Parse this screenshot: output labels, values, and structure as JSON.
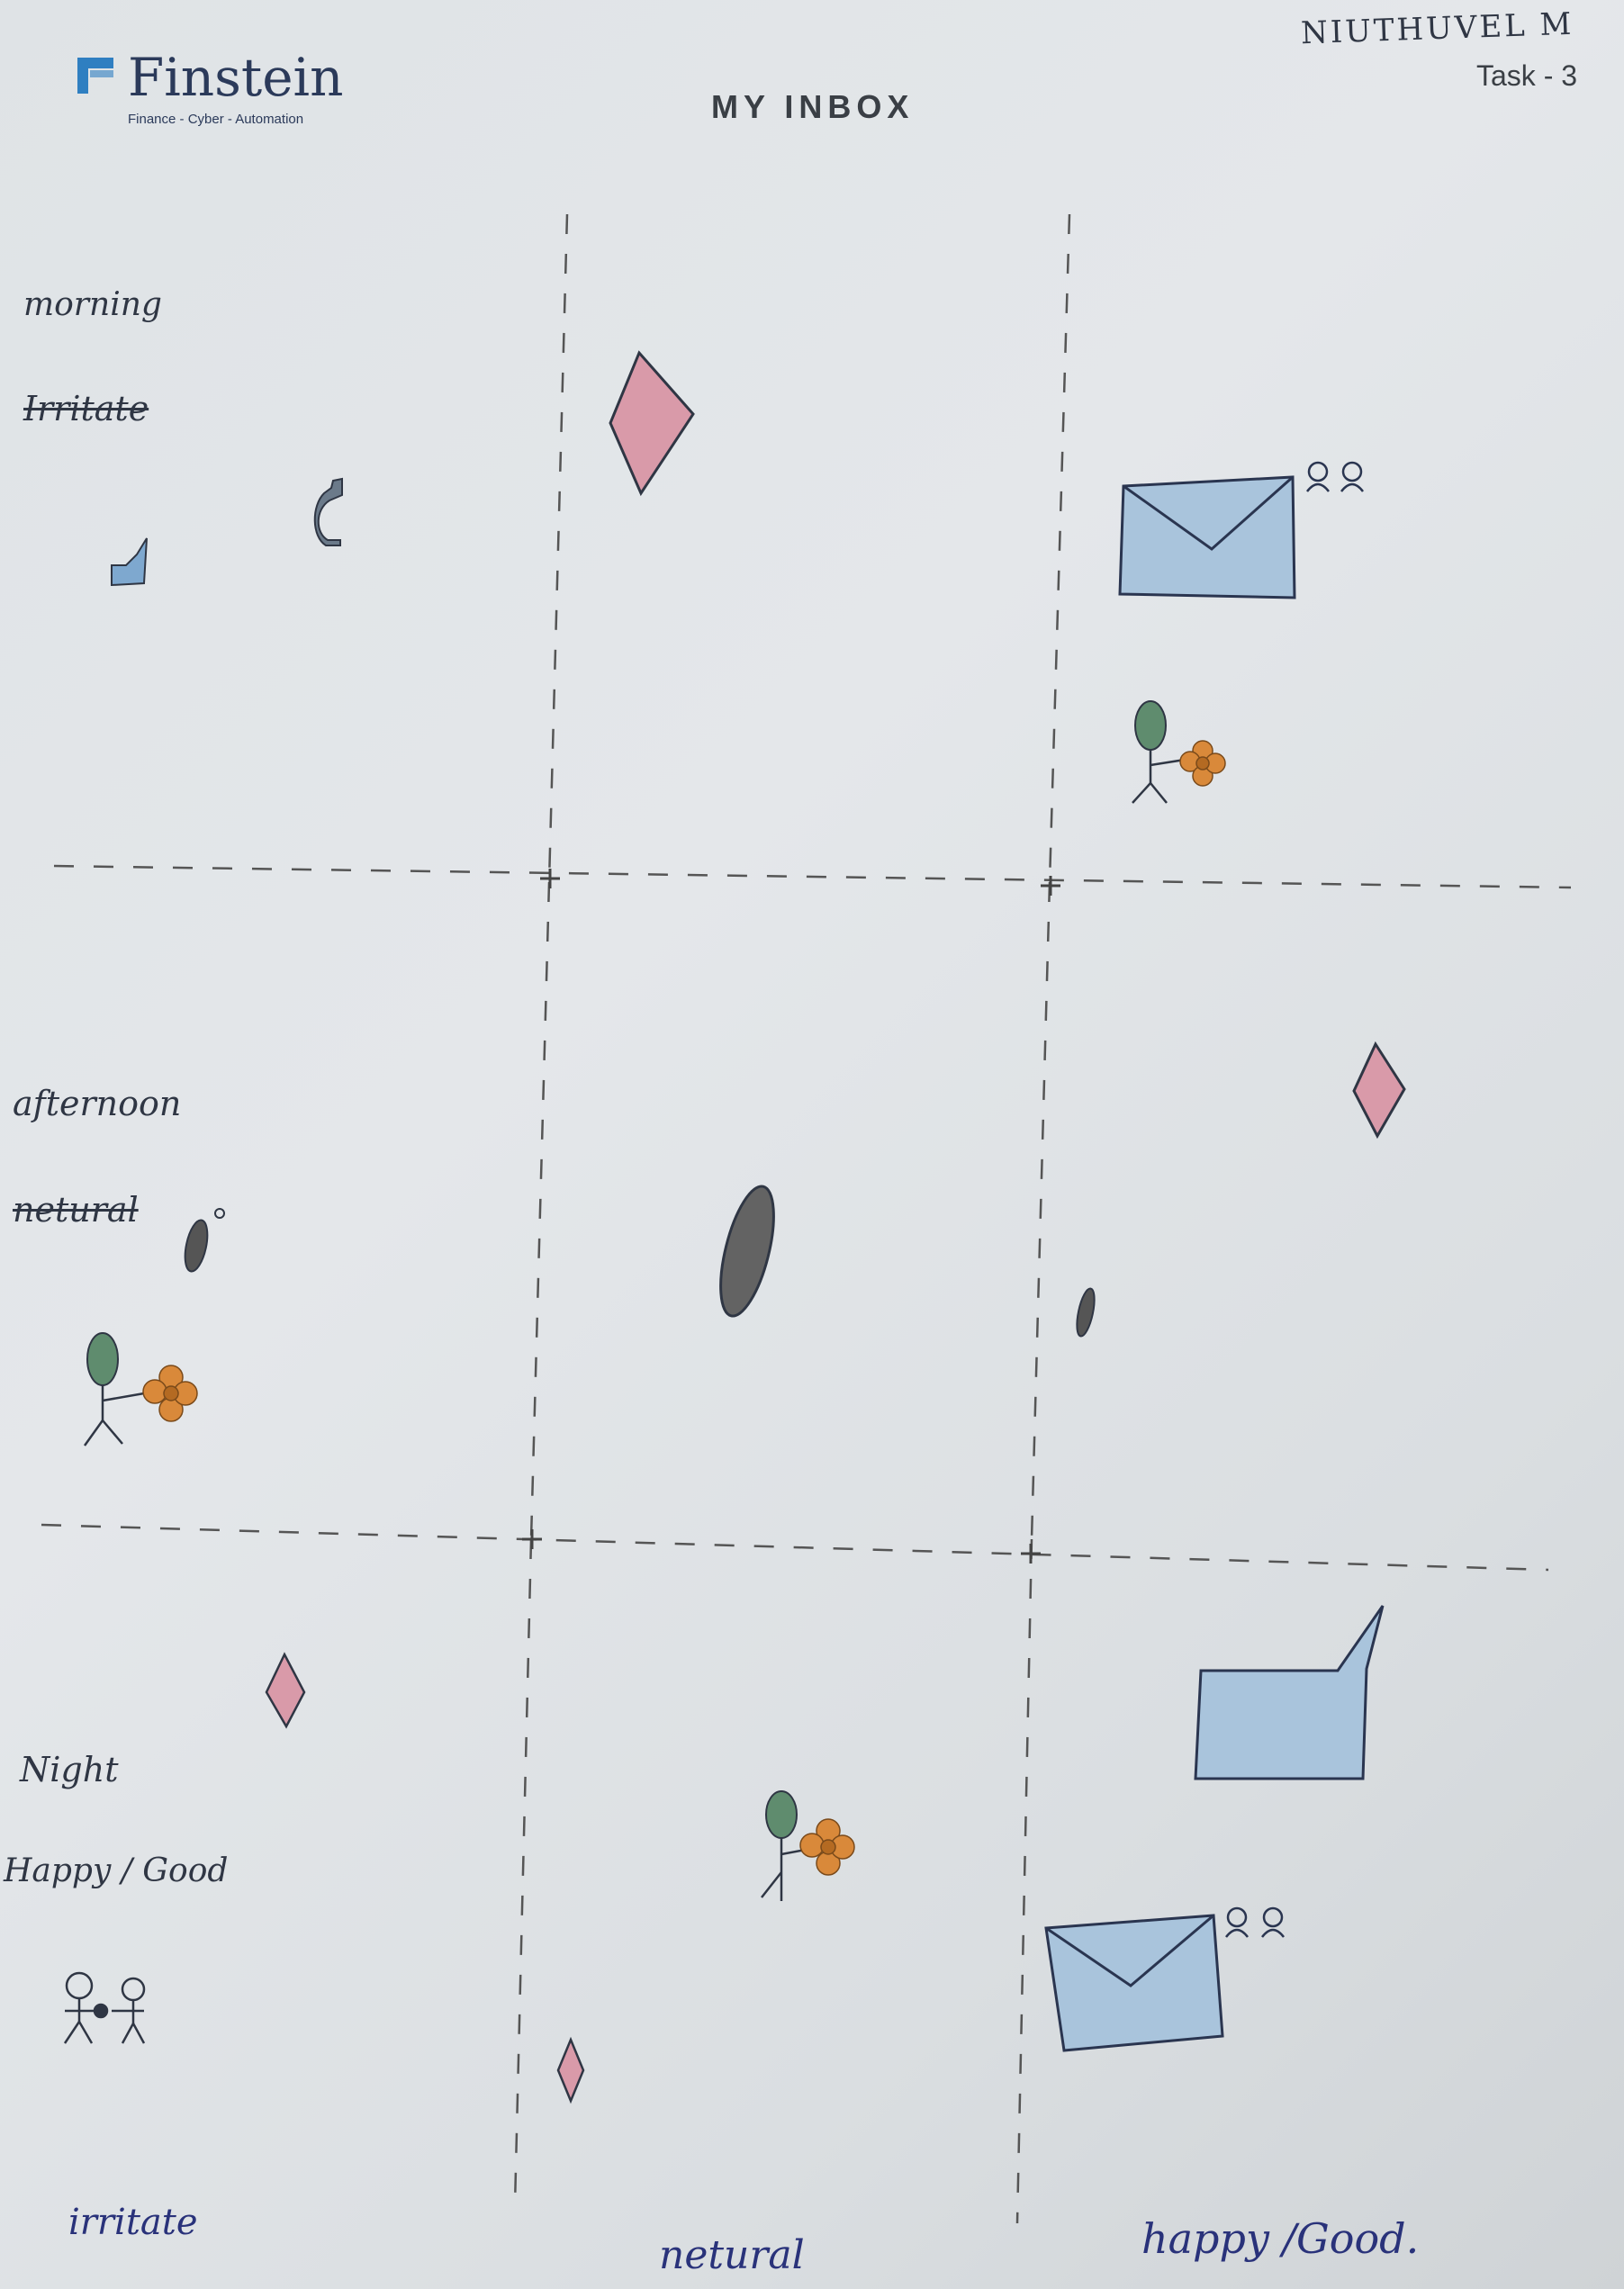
{
  "header": {
    "logo_name": "Finstein",
    "logo_tagline": "Finance - Cyber - Automation",
    "title": "MY INBOX",
    "task": "Task - 3",
    "author": "NIUTHUVEL M"
  },
  "rows": [
    {
      "time": "morning",
      "mood": "Irritate"
    },
    {
      "time": "afternoon",
      "mood": "netural"
    },
    {
      "time": "Night",
      "mood": "Happy / Good"
    }
  ],
  "columns": [
    {
      "label": "irritate"
    },
    {
      "label": "netural"
    },
    {
      "label": "happy /Good."
    }
  ],
  "colors": {
    "paper": "#e1e4e7",
    "ink": "#2f3644",
    "envelope_blue": "#a9c4dc",
    "diamond_pink": "#d89aa8",
    "leaf_green": "#5f8c6e",
    "flower_orange": "#d9893a",
    "dash": "#555555"
  },
  "icons": [
    "diamond-icon",
    "envelope-icon",
    "stick-figure-flower-icon",
    "phone-icon",
    "speech-bubble-icon",
    "seed-icon",
    "two-people-icon"
  ]
}
